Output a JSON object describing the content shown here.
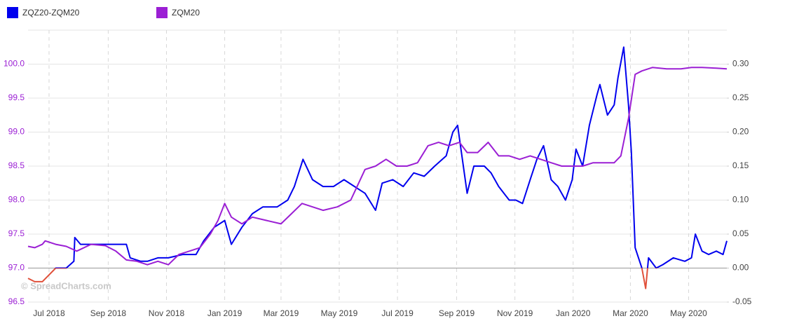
{
  "chart_data": {
    "type": "line",
    "watermark": "© SpreadCharts.com",
    "xlim": [
      0,
      732
    ],
    "xticks": [
      {
        "value": 22,
        "label": "Jul 2018"
      },
      {
        "value": 84,
        "label": "Sep 2018"
      },
      {
        "value": 145,
        "label": "Nov 2018"
      },
      {
        "value": 206,
        "label": "Jan 2019"
      },
      {
        "value": 265,
        "label": "Mar 2019"
      },
      {
        "value": 326,
        "label": "May 2019"
      },
      {
        "value": 387,
        "label": "Jul 2019"
      },
      {
        "value": 449,
        "label": "Sep 2019"
      },
      {
        "value": 510,
        "label": "Nov 2019"
      },
      {
        "value": 571,
        "label": "Jan 2020"
      },
      {
        "value": 631,
        "label": "Mar 2020"
      },
      {
        "value": 692,
        "label": "May 2020"
      }
    ],
    "ylim": [
      96.5,
      100.5
    ],
    "yticks": [
      96.5,
      {
        "value": 97,
        "label": "97.0"
      },
      97.5,
      {
        "value": 98,
        "label": "98.0"
      },
      98.5,
      {
        "value": 99,
        "label": "99.0"
      },
      99.5,
      {
        "value": 100,
        "label": "100.0"
      }
    ],
    "y2lim": [
      -0.05,
      0.35
    ],
    "y2ticks": [
      -0.05,
      {
        "value": 0,
        "label": "0.00"
      },
      0.05,
      {
        "value": 0.1,
        "label": "0.10"
      },
      0.15,
      {
        "value": 0.2,
        "label": "0.20"
      },
      0.25,
      {
        "value": 0.3,
        "label": "0.30"
      }
    ],
    "grid": true,
    "zero_line": true,
    "legend": "top-left",
    "series": [
      {
        "name": "ZQZ20-ZQM20",
        "color": "#0000ee",
        "negative_color": "#e0503a",
        "axis": "y2",
        "x": [
          0,
          7,
          15,
          22,
          29,
          40,
          48,
          49,
          55,
          66,
          81,
          92,
          103,
          107,
          118,
          125,
          136,
          147,
          162,
          176,
          184,
          195,
          206,
          213,
          224,
          235,
          246,
          261,
          272,
          279,
          288,
          298,
          309,
          320,
          331,
          342,
          353,
          364,
          371,
          382,
          393,
          404,
          415,
          426,
          438,
          445,
          450,
          460,
          467,
          478,
          485,
          493,
          504,
          511,
          518,
          526,
          533,
          540,
          548,
          555,
          563,
          570,
          574,
          581,
          588,
          596,
          599,
          607,
          614,
          618,
          624,
          629,
          632,
          636,
          643,
          647,
          650,
          658,
          665,
          676,
          688,
          695,
          699,
          706,
          713,
          721,
          728,
          732
        ],
        "values": [
          -0.015,
          -0.02,
          -0.02,
          -0.01,
          0,
          0,
          0.01,
          0.045,
          0.035,
          0.035,
          0.035,
          0.035,
          0.035,
          0.015,
          0.01,
          0.01,
          0.015,
          0.015,
          0.02,
          0.02,
          0.04,
          0.06,
          0.07,
          0.035,
          0.06,
          0.08,
          0.09,
          0.09,
          0.1,
          0.12,
          0.16,
          0.13,
          0.12,
          0.12,
          0.13,
          0.12,
          0.11,
          0.085,
          0.125,
          0.13,
          0.12,
          0.14,
          0.135,
          0.15,
          0.165,
          0.2,
          0.21,
          0.11,
          0.15,
          0.15,
          0.14,
          0.12,
          0.1,
          0.1,
          0.095,
          0.13,
          0.16,
          0.18,
          0.13,
          0.12,
          0.1,
          0.13,
          0.175,
          0.15,
          0.21,
          0.255,
          0.27,
          0.225,
          0.24,
          0.28,
          0.325,
          0.24,
          0.17,
          0.03,
          0,
          -0.03,
          0.015,
          0,
          0.005,
          0.015,
          0.01,
          0.015,
          0.05,
          0.025,
          0.02,
          0.025,
          0.02,
          0.04
        ]
      },
      {
        "name": "ZQM20",
        "color": "#9b1fd4",
        "axis": "y",
        "x": [
          0,
          7,
          15,
          18,
          29,
          40,
          51,
          66,
          81,
          92,
          103,
          114,
          125,
          136,
          147,
          158,
          169,
          180,
          191,
          199,
          206,
          213,
          224,
          235,
          250,
          265,
          276,
          287,
          298,
          309,
          324,
          338,
          353,
          364,
          375,
          386,
          397,
          408,
          419,
          430,
          441,
          452,
          460,
          471,
          482,
          493,
          504,
          515,
          526,
          537,
          548,
          559,
          570,
          581,
          592,
          603,
          614,
          621,
          629,
          636,
          643,
          654,
          669,
          684,
          695,
          706,
          721,
          732
        ],
        "values": [
          97.32,
          97.3,
          97.35,
          97.4,
          97.35,
          97.32,
          97.25,
          97.35,
          97.33,
          97.25,
          97.12,
          97.1,
          97.05,
          97.1,
          97.05,
          97.2,
          97.25,
          97.3,
          97.5,
          97.7,
          97.95,
          97.75,
          97.65,
          97.75,
          97.7,
          97.65,
          97.8,
          97.95,
          97.9,
          97.85,
          97.9,
          98,
          98.45,
          98.5,
          98.6,
          98.5,
          98.5,
          98.55,
          98.8,
          98.85,
          98.8,
          98.85,
          98.7,
          98.7,
          98.85,
          98.65,
          98.65,
          98.6,
          98.65,
          98.6,
          98.55,
          98.5,
          98.5,
          98.5,
          98.55,
          98.55,
          98.55,
          98.65,
          99.2,
          99.85,
          99.9,
          99.95,
          99.93,
          99.93,
          99.95,
          99.95,
          99.94,
          99.93
        ]
      }
    ]
  }
}
